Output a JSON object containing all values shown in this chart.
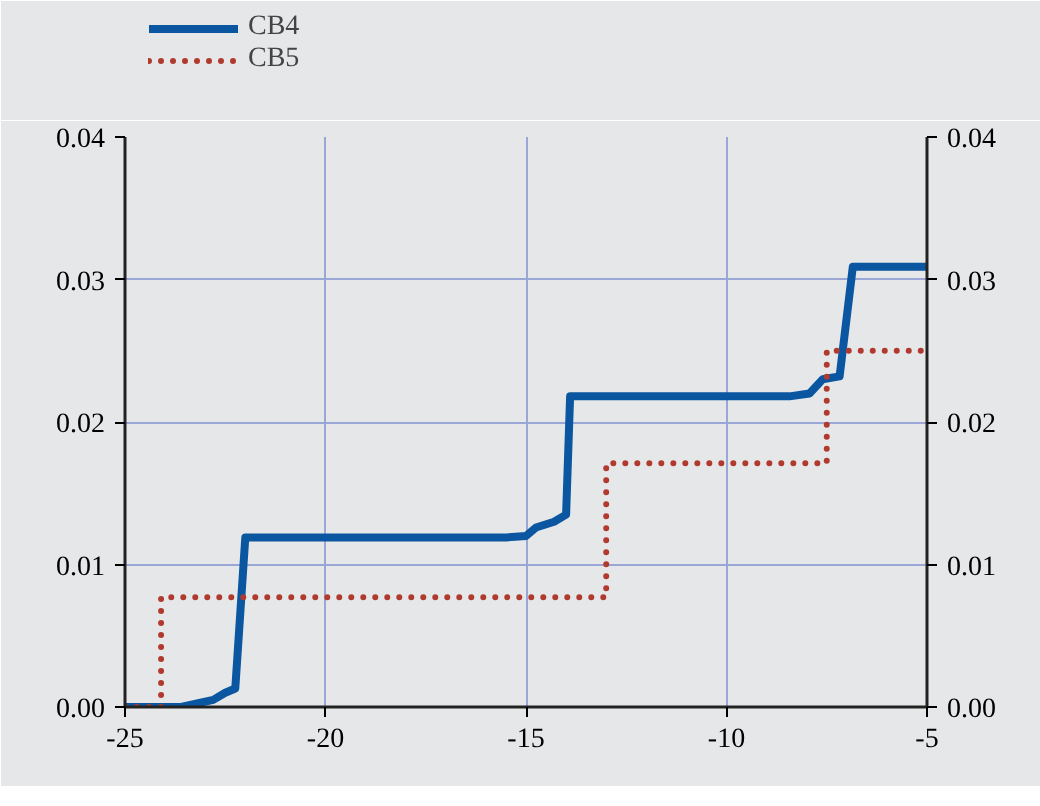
{
  "chart_data": {
    "type": "line",
    "series": [
      {
        "name": "CB4",
        "color": "#0a56a0",
        "line_style": "solid",
        "x": [
          -25,
          -23.6,
          -22.8,
          -22.5,
          -22.25,
          -22.0,
          -15.5,
          -15.0,
          -14.75,
          -14.3,
          -14.0,
          -13.9,
          -8.43,
          -7.93,
          -7.6,
          -7.18,
          -6.85,
          -5
        ],
        "values": [
          0,
          0,
          0.0005,
          0.001,
          0.0013,
          0.0119,
          0.0119,
          0.012,
          0.0126,
          0.013,
          0.0135,
          0.0218,
          0.0218,
          0.022,
          0.023,
          0.0232,
          0.0309,
          0.0309
        ]
      },
      {
        "name": "CB5",
        "color": "#b03a2e",
        "line_style": "dotted",
        "x": [
          -25,
          -24.1,
          -24.1,
          -13.0,
          -13.0,
          -7.5,
          -7.5,
          -5
        ],
        "values": [
          0,
          0,
          0.0077,
          0.0077,
          0.0171,
          0.0171,
          0.025,
          0.025
        ]
      }
    ],
    "xlim": [
      -25,
      -5
    ],
    "xticks": [
      -25,
      -20,
      -15,
      -10,
      -5
    ],
    "ylim": [
      0,
      0.04
    ],
    "yticks": [
      {
        "value": 0,
        "label": "0.00"
      },
      {
        "value": 0.01,
        "label": "0.01"
      },
      {
        "value": 0.02,
        "label": "0.02"
      },
      {
        "value": 0.03,
        "label": "0.03"
      },
      {
        "value": 0.04,
        "label": "0.04"
      }
    ],
    "y2lim": [
      0,
      0.04
    ],
    "y2ticks": [
      {
        "value": 0,
        "label": "0.00"
      },
      {
        "value": 0.01,
        "label": "0.01"
      },
      {
        "value": 0.02,
        "label": "0.02"
      },
      {
        "value": 0.03,
        "label": "0.03"
      },
      {
        "value": 0.04,
        "label": "0.04"
      }
    ],
    "grid": true,
    "legend": "top left",
    "marker": "none"
  }
}
